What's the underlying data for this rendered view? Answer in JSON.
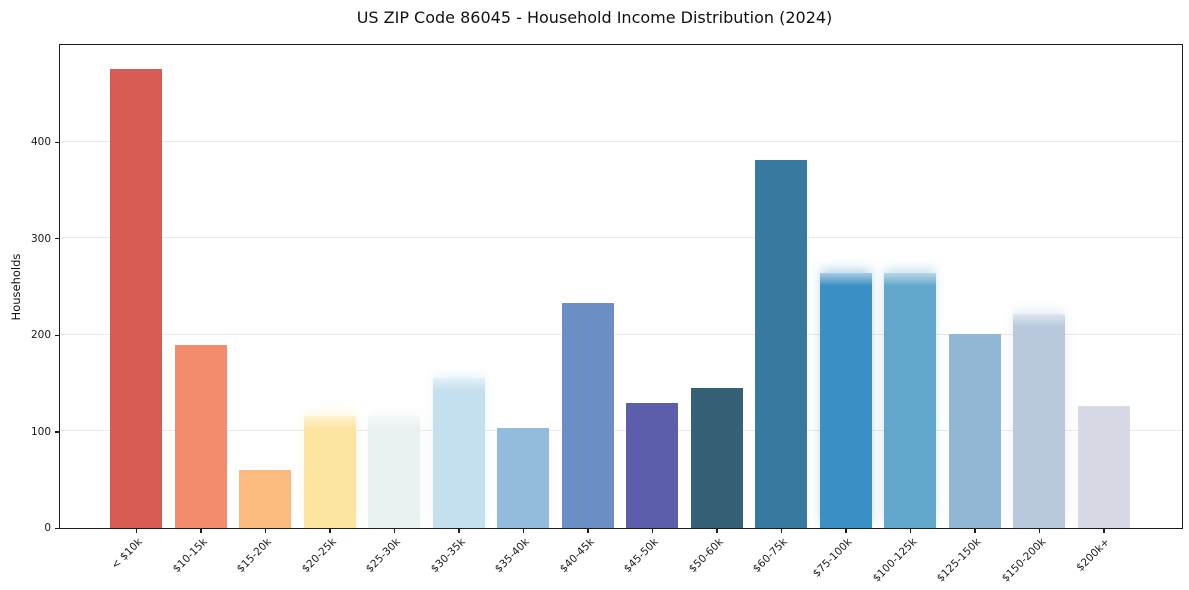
{
  "chart_data": {
    "type": "bar",
    "title": "US ZIP Code 86045 - Household Income Distribution (2024)",
    "xlabel": "",
    "ylabel": "Households",
    "ylim": [
      0,
      500
    ],
    "yticks": [
      0,
      100,
      200,
      300,
      400
    ],
    "grid": "horizontal-only",
    "legend": "none",
    "categories": [
      "< $10k",
      "$10-15k",
      "$15-20k",
      "$20-25k",
      "$25-30k",
      "$30-35k",
      "$35-40k",
      "$40-45k",
      "$45-50k",
      "$50-60k",
      "$60-75k",
      "$75-100k",
      "$100-125k",
      "$125-150k",
      "$150-200k",
      "$200k+"
    ],
    "values": [
      475,
      189,
      60,
      116,
      116,
      155,
      104,
      233,
      129,
      145,
      381,
      264,
      264,
      201,
      222,
      126
    ],
    "bar_colors": [
      "#d85c54",
      "#f28c6c",
      "#fbbb7e",
      "#fce5a0",
      "#e9f2f1",
      "#c4e0ef",
      "#92bcdc",
      "#6b8fc4",
      "#5c5dab",
      "#366076",
      "#38799f",
      "#3a8fc4",
      "#61a8cc",
      "#91b7d5",
      "#b8c9de",
      "#d7d9e5"
    ],
    "soft_top_bars": [
      3,
      4,
      5,
      11,
      12,
      14
    ],
    "colors": {
      "grid": "#e9e9e9",
      "spine": "#1c1c1c",
      "text": "#1a1a1a",
      "background": "#ffffff"
    }
  }
}
